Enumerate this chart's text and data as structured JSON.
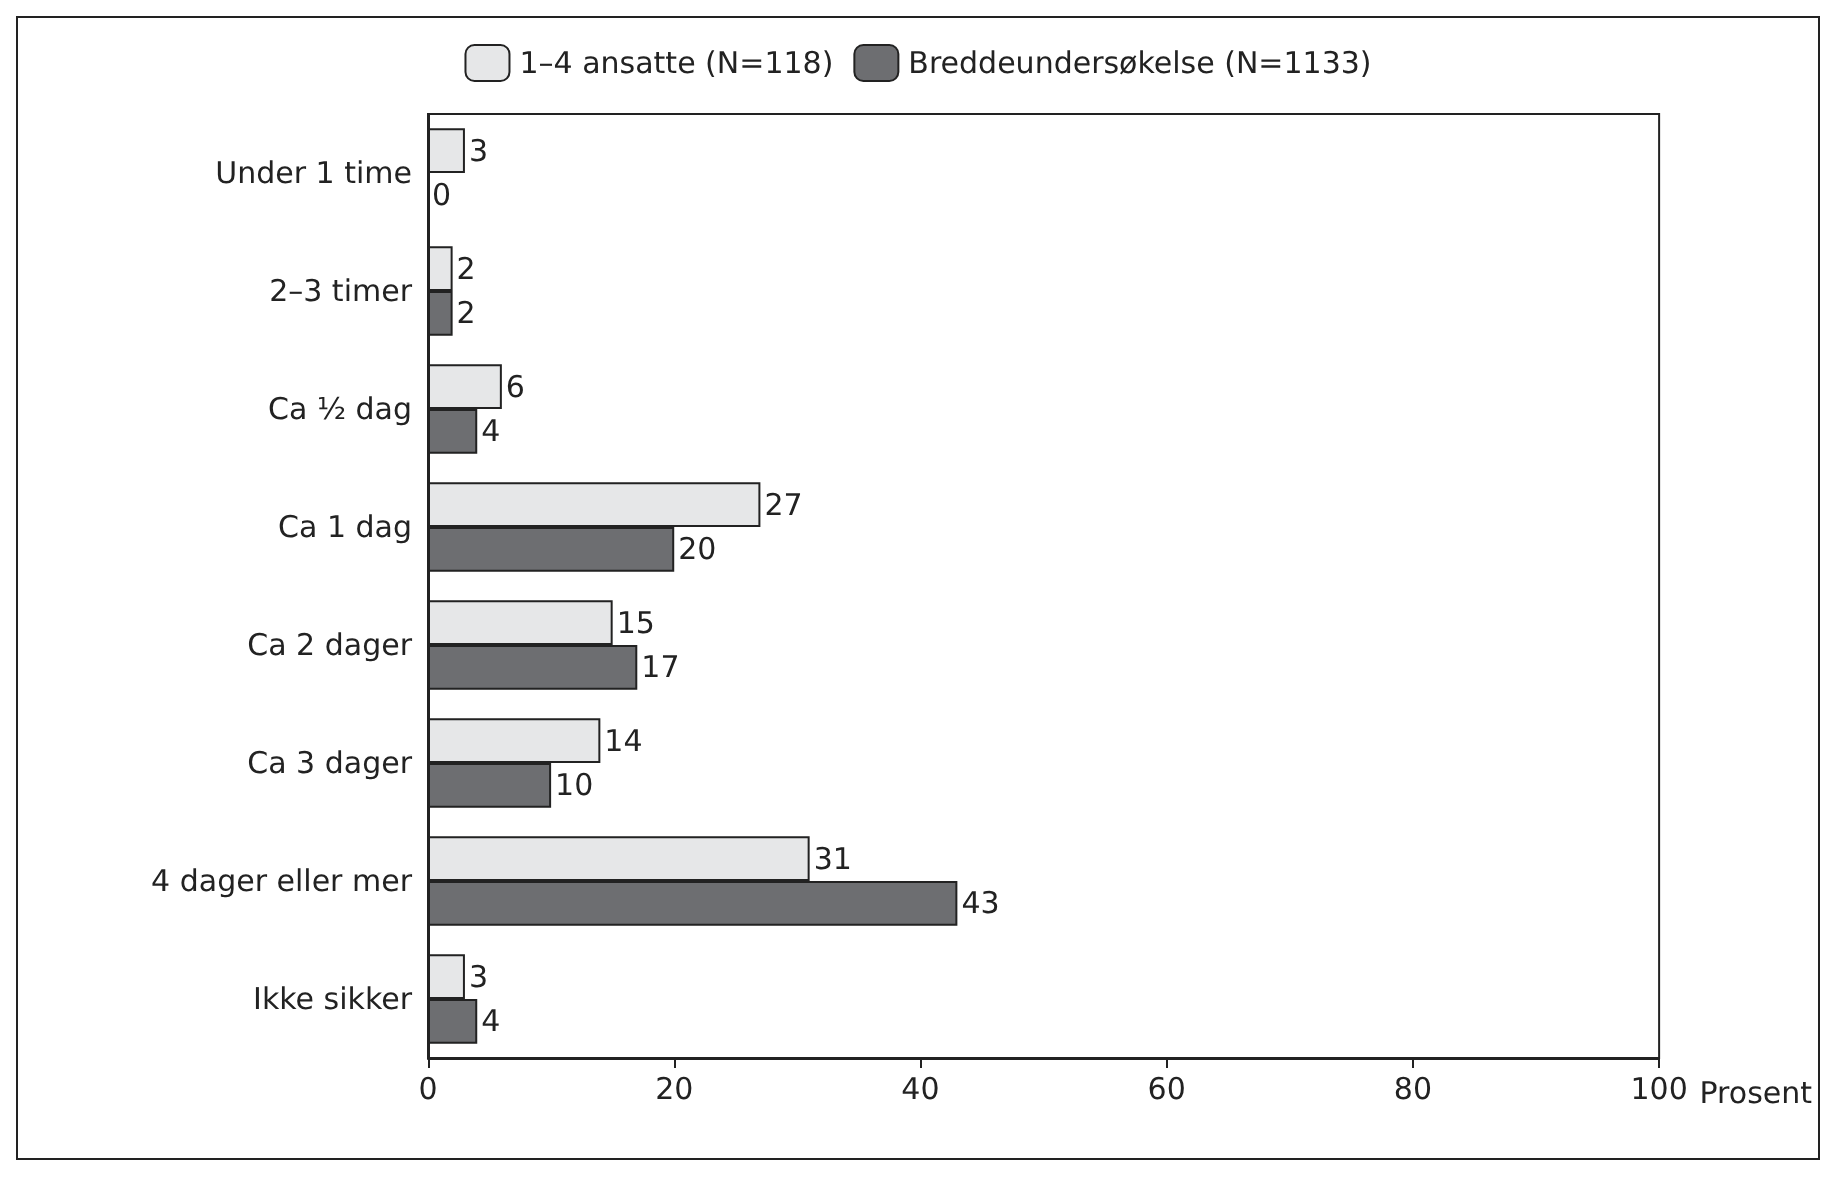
{
  "chart_data": {
    "type": "bar",
    "orientation": "horizontal",
    "xlabel": "Prosent",
    "categories": [
      "Under 1 time",
      "2–3 timer",
      "Ca ½ dag",
      "Ca 1 dag",
      "Ca 2 dager",
      "Ca 3 dager",
      "4 dager eller mer",
      "Ikke sikker"
    ],
    "series": [
      {
        "name": "1–4 ansatte (N=118)",
        "color": "#e6e7e8",
        "values": [
          3,
          2,
          6,
          27,
          15,
          14,
          31,
          3
        ]
      },
      {
        "name": "Breddeundersøkelse (N=1133)",
        "color": "#6d6e71",
        "values": [
          0,
          2,
          4,
          20,
          17,
          10,
          43,
          4
        ]
      }
    ],
    "xlim": [
      0,
      100
    ],
    "xticks": [
      0,
      20,
      40,
      60,
      80,
      100
    ],
    "data_labels": true,
    "grid": false,
    "legend": "top"
  }
}
